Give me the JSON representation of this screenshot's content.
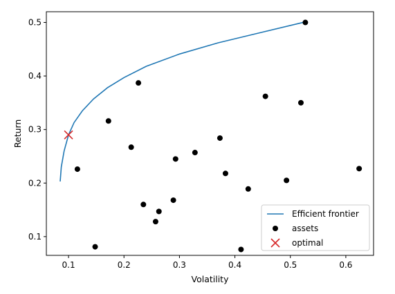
{
  "chart_data": {
    "type": "scatter",
    "title": "",
    "xlabel": "Volatility",
    "ylabel": "Return",
    "xlim": [
      0.06,
      0.65
    ],
    "ylim": [
      0.065,
      0.52
    ],
    "xticks": [
      {
        "value": 0.1,
        "label": "0.1"
      },
      {
        "value": 0.2,
        "label": "0.2"
      },
      {
        "value": 0.3,
        "label": "0.3"
      },
      {
        "value": 0.4,
        "label": "0.4"
      },
      {
        "value": 0.5,
        "label": "0.5"
      },
      {
        "value": 0.6,
        "label": "0.6"
      }
    ],
    "yticks": [
      {
        "value": 0.1,
        "label": "0.1"
      },
      {
        "value": 0.2,
        "label": "0.2"
      },
      {
        "value": 0.3,
        "label": "0.3"
      },
      {
        "value": 0.4,
        "label": "0.4"
      },
      {
        "value": 0.5,
        "label": "0.5"
      }
    ],
    "grid": false,
    "legend_position": "lower right",
    "series": [
      {
        "name": "Efficient frontier",
        "kind": "line",
        "color": "#1f77b4",
        "x": [
          0.085,
          0.087,
          0.092,
          0.1,
          0.11,
          0.125,
          0.145,
          0.17,
          0.2,
          0.24,
          0.3,
          0.37,
          0.45,
          0.527
        ],
        "y": [
          0.203,
          0.23,
          0.26,
          0.29,
          0.313,
          0.335,
          0.357,
          0.378,
          0.397,
          0.418,
          0.441,
          0.462,
          0.482,
          0.501
        ]
      },
      {
        "name": "assets",
        "kind": "scatter",
        "marker": "circle",
        "color": "#000000",
        "points": [
          {
            "x": 0.116,
            "y": 0.226
          },
          {
            "x": 0.148,
            "y": 0.081
          },
          {
            "x": 0.172,
            "y": 0.316
          },
          {
            "x": 0.213,
            "y": 0.267
          },
          {
            "x": 0.226,
            "y": 0.387
          },
          {
            "x": 0.235,
            "y": 0.16
          },
          {
            "x": 0.257,
            "y": 0.128
          },
          {
            "x": 0.263,
            "y": 0.147
          },
          {
            "x": 0.289,
            "y": 0.168
          },
          {
            "x": 0.293,
            "y": 0.245
          },
          {
            "x": 0.328,
            "y": 0.257
          },
          {
            "x": 0.373,
            "y": 0.284
          },
          {
            "x": 0.383,
            "y": 0.218
          },
          {
            "x": 0.411,
            "y": 0.076
          },
          {
            "x": 0.424,
            "y": 0.189
          },
          {
            "x": 0.455,
            "y": 0.362
          },
          {
            "x": 0.493,
            "y": 0.205
          },
          {
            "x": 0.519,
            "y": 0.35
          },
          {
            "x": 0.527,
            "y": 0.5
          },
          {
            "x": 0.624,
            "y": 0.227
          }
        ]
      },
      {
        "name": "optimal",
        "kind": "scatter",
        "marker": "x",
        "color": "#d62728",
        "points": [
          {
            "x": 0.1,
            "y": 0.29
          }
        ]
      }
    ]
  }
}
